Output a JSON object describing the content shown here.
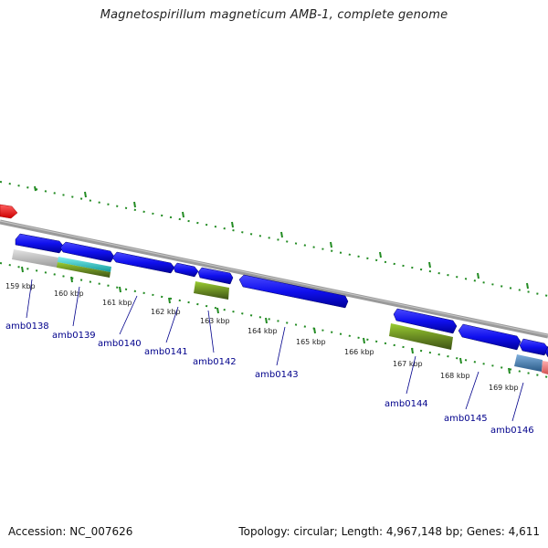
{
  "title": "Magnetospirillum magneticum AMB-1, complete genome",
  "footer": {
    "accession": "Accession: NC_007626",
    "topology": "Topology: circular; Length: 4,967,148 bp; Genes: 4,611"
  },
  "colors": {
    "forward_cds": "#1010ee",
    "rna": "#6b8e23",
    "highlight_cyan": "#22cccc",
    "grey_feature": "#c8c8c8",
    "steel_blue": "#4682b4",
    "pink": "#f08080",
    "red_arrow": "#ff0000",
    "tick": "#228b22",
    "backbone": "#888888"
  },
  "kbp_labels": [
    "159 kbp",
    "160 kbp",
    "161 kbp",
    "162 kbp",
    "163 kbp",
    "164 kbp",
    "165 kbp",
    "166 kbp",
    "167 kbp",
    "168 kbp",
    "169 kbp"
  ],
  "gene_labels": [
    "amb0138",
    "amb0139",
    "amb0140",
    "amb0141",
    "amb0142",
    "amb0143",
    "amb0144",
    "amb0145",
    "amb0146"
  ]
}
